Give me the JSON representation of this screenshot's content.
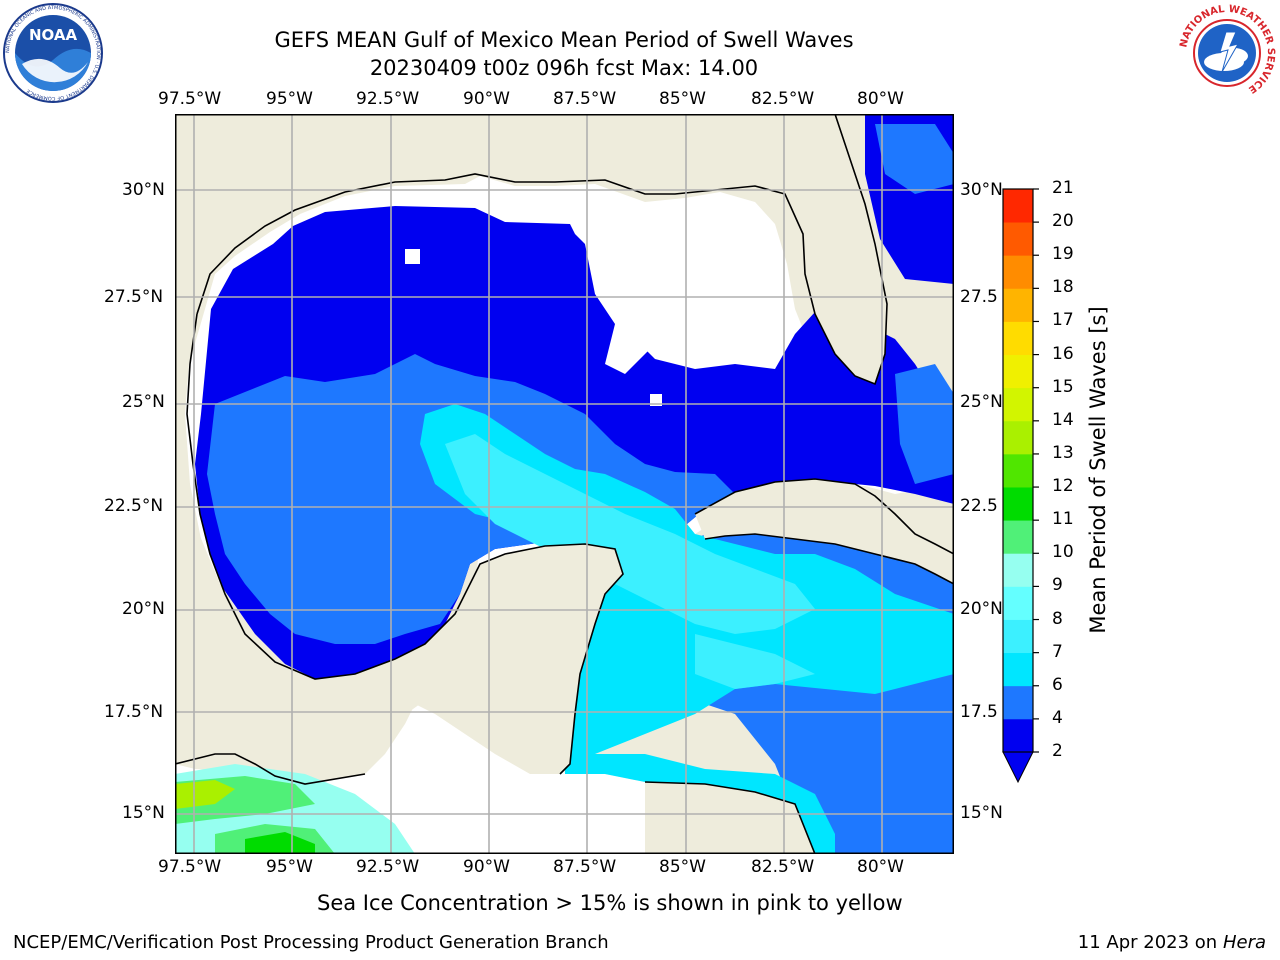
{
  "header": {
    "title_line1": "GEFS MEAN Gulf of Mexico Mean Period of Swell Waves",
    "title_line2": "20230409 t00z 096h fcst   Max: 14.00"
  },
  "logos": {
    "noaa": {
      "text": "NOAA",
      "ring_text": "NATIONAL OCEANIC AND ATMOSPHERIC ADMINISTRATION · U.S. DEPARTMENT OF COMMERCE"
    },
    "nws": {
      "ring_text": "NATIONAL WEATHER SERVICE"
    }
  },
  "map": {
    "lon_labels": [
      "97.5°W",
      "95°W",
      "92.5°W",
      "90°W",
      "87.5°W",
      "85°W",
      "82.5°W",
      "80°W"
    ],
    "lat_labels_left": [
      "30°N",
      "27.5°N",
      "25°N",
      "22.5°N",
      "20°N",
      "17.5°N",
      "15°N"
    ],
    "lat_labels_right": [
      "30°N",
      "27.5",
      "25°N",
      "22.5",
      "20°N",
      "17.5",
      "15°N"
    ],
    "colors": {
      "land": "#eeecdc",
      "nodata": "#ffffff",
      "grid": "#b0b0b0",
      "coast": "#000000"
    }
  },
  "colorbar": {
    "label": "Mean Period of Swell Waves [s]",
    "ticks": [
      "2",
      "4",
      "6",
      "7",
      "8",
      "9",
      "10",
      "11",
      "12",
      "13",
      "14",
      "15",
      "16",
      "17",
      "18",
      "19",
      "20",
      "21"
    ],
    "colors": [
      "#0000f0",
      "#1e78ff",
      "#00e6ff",
      "#3cf0ff",
      "#64ffff",
      "#96fff0",
      "#50f078",
      "#00dc00",
      "#50e600",
      "#aaf000",
      "#d2f500",
      "#f0f000",
      "#ffdc00",
      "#ffb400",
      "#ff8c00",
      "#ff5a00",
      "#ff2800"
    ]
  },
  "caption": "Sea Ice Concentration > 15% is shown in pink to yellow",
  "footer": {
    "left": "NCEP/EMC/Verification Post Processing Product Generation Branch",
    "right_prefix": "11 Apr 2023 on ",
    "right_host": "Hera"
  }
}
